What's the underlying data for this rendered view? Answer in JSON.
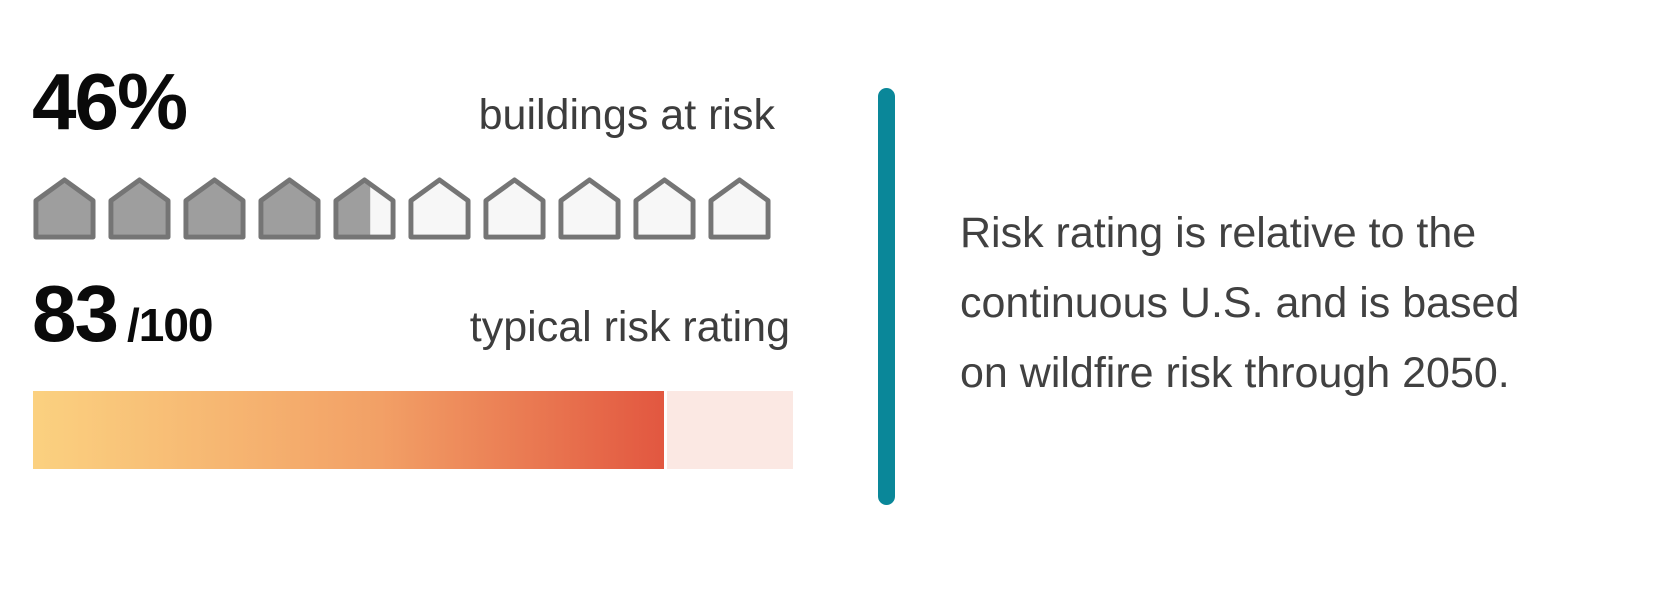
{
  "stats": {
    "buildings": {
      "value": "46%",
      "label": "buildings at risk"
    },
    "risk": {
      "value": "83",
      "denominator": "/100",
      "label": "typical risk rating"
    }
  },
  "note": {
    "lines": [
      "Risk rating is relative to the",
      "continuous U.S. and is based",
      "on wildfire risk through 2050."
    ]
  },
  "colors": {
    "number_text": "#0A0A0A",
    "label_text": "#3D3D3D",
    "note_text": "#414141",
    "house_fill": "#9E9E9E",
    "house_empty": "#F7F7F7",
    "house_border": "#757575",
    "gradient_start": "#FBD180",
    "gradient_mid": "#F2A066",
    "gradient_end": "#E25740",
    "bar_remainder": "#FBE8E3",
    "divider": "#0A8799"
  },
  "chart_data": [
    {
      "type": "pictograph",
      "title": "buildings at risk",
      "value_label": "46%",
      "value": 46,
      "max": 100,
      "icon": "house",
      "icons_total": 10,
      "icons_filled": 4.6
    },
    {
      "type": "bar",
      "title": "typical risk rating",
      "value_label": "83 /100",
      "value": 83,
      "max": 100,
      "orientation": "horizontal",
      "gradient": [
        "#FBD180",
        "#F2A066",
        "#E25740"
      ],
      "remainder_color": "#FBE8E3"
    }
  ]
}
